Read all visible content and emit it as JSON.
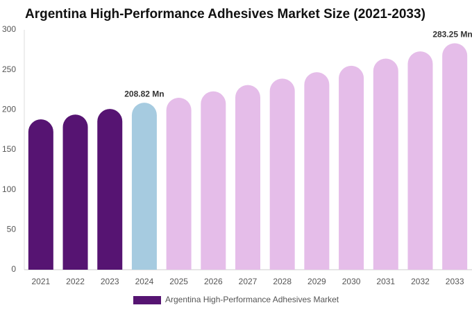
{
  "chart_data": {
    "type": "bar",
    "title": "Argentina High-Performance Adhesives Market Size (2021-2033)",
    "categories": [
      "2021",
      "2022",
      "2023",
      "2024",
      "2025",
      "2026",
      "2027",
      "2028",
      "2029",
      "2030",
      "2031",
      "2032",
      "2033"
    ],
    "series": [
      {
        "name": "Argentina High-Performance Adhesives Market",
        "color": "#561472",
        "values": [
          188,
          194,
          201,
          208.82,
          215,
          223,
          231,
          239,
          247,
          255,
          264,
          273,
          283.25
        ],
        "colors": [
          "#561472",
          "#561472",
          "#561472",
          "#a6cbe0",
          "#e5bde9",
          "#e5bde9",
          "#e5bde9",
          "#e5bde9",
          "#e5bde9",
          "#e5bde9",
          "#e5bde9",
          "#e5bde9",
          "#e5bde9"
        ],
        "value_labels": [
          null,
          null,
          null,
          "208.82 Mn",
          null,
          null,
          null,
          null,
          null,
          null,
          null,
          null,
          "283.25 Mn"
        ]
      }
    ],
    "ylim": [
      0,
      300
    ],
    "yticks": [
      0,
      50,
      100,
      150,
      200,
      250,
      300
    ],
    "grid": false
  }
}
